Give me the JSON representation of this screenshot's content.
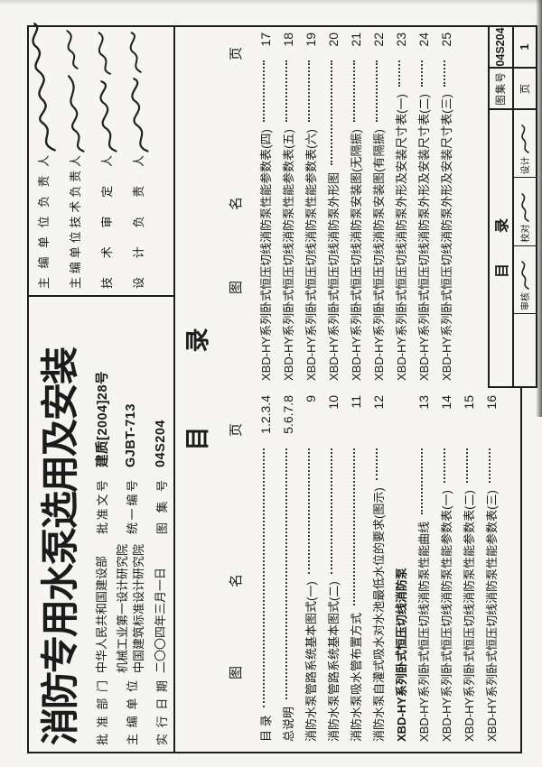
{
  "colors": {
    "ink": "#1b1b1b",
    "paper": "#f6f5f1",
    "line": "#1d1d1d"
  },
  "header": {
    "title": "消防专用水泵选用及安装",
    "info": {
      "rows": [
        {
          "label": "批准部门",
          "value": "中华人民共和国建设部",
          "label2": "批准文号",
          "value2": "建质[2004]28号"
        },
        {
          "label": "主编单位",
          "value": "机械工业第一设计研究院",
          "value_line2": "中国建筑标准设计研究院",
          "label2": "统一编号",
          "value2": "GJBT-713"
        },
        {
          "label": "实行日期",
          "value": "二〇〇四年三月一日",
          "label2": "图集号",
          "value2": "04S204"
        }
      ]
    },
    "signatures": [
      {
        "label": "主编单位负责人",
        "signature_style": "handwritten-scribble"
      },
      {
        "label": "主编单位技术负责人",
        "signature_style": "handwritten-scribble"
      },
      {
        "label": "技术审定人",
        "signature_style": "handwritten-scribble"
      },
      {
        "label": "设计负责人",
        "signature_style": "handwritten-scribble"
      }
    ]
  },
  "toc": {
    "title1": "目",
    "title2": "录",
    "head_tu": "图",
    "head_ming": "名",
    "head_ye": "页",
    "left": [
      {
        "name": "目 录",
        "page": "1.2.3.4"
      },
      {
        "name": "总说明",
        "page": "5.6.7.8"
      },
      {
        "name": "消防水泵管路系统基本图式(一)",
        "page": "9"
      },
      {
        "name": "消防水泵管路系统基本图式(二)",
        "page": "10"
      },
      {
        "name": "消防水泵吸水管布置方式",
        "page": "11"
      },
      {
        "name": "消防水泵自灌式吸水对水池最低水位的要求(图示)",
        "page": "12"
      },
      {
        "name": "XBD-HY系列卧式恒压切线消防泵",
        "section": true
      },
      {
        "name": "XBD-HY系列卧式恒压切线消防泵性能曲线",
        "page": "13"
      },
      {
        "name": "XBD-HY系列卧式恒压切线消防泵性能参数表(一)",
        "page": "14"
      },
      {
        "name": "XBD-HY系列卧式恒压切线消防泵性能参数表(二)",
        "page": "15"
      },
      {
        "name": "XBD-HY系列卧式恒压切线消防泵性能参数表(三)",
        "page": "16"
      }
    ],
    "right": [
      {
        "name": "XBD-HY系列卧式恒压切线消防泵性能参数表(四)",
        "page": "17"
      },
      {
        "name": "XBD-HY系列卧式恒压切线消防泵性能参数表(五)",
        "page": "18"
      },
      {
        "name": "XBD-HY系列卧式恒压切线消防泵性能参数表(六)",
        "page": "19"
      },
      {
        "name": "XBD-HY系列卧式恒压切线消防泵外形图",
        "page": "20"
      },
      {
        "name": "XBD-HY系列卧式恒压切线消防泵安装图(无隔振)",
        "page": "21"
      },
      {
        "name": "XBD-HY系列卧式恒压切线消防泵安装图(有隔振)",
        "page": "22"
      },
      {
        "name": "XBD-HY系列卧式恒压切线消防泵外形及安装尺寸表(一)",
        "page": "23"
      },
      {
        "name": "XBD-HY系列卧式恒压切线消防泵外形及安装尺寸表(二)",
        "page": "24"
      },
      {
        "name": "XBD-HY系列卧式恒压切线消防泵外形及安装尺寸表(三)",
        "page": "25"
      }
    ]
  },
  "title_block": {
    "title1": "目",
    "title2": "录",
    "atlas_label": "图集号",
    "atlas_no": "04S204",
    "page_label": "页",
    "page_no": "1",
    "sig_cells": [
      {
        "label": "审核",
        "signature_style": "handwritten-scribble"
      },
      {
        "label": "校对",
        "signature_style": "handwritten-scribble"
      },
      {
        "label": "设计",
        "signature_style": "handwritten-scribble"
      }
    ]
  }
}
